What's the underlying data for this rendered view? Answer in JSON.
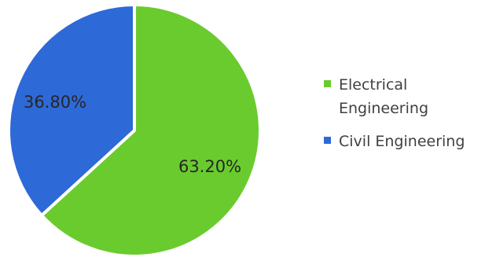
{
  "chart_data": {
    "type": "pie",
    "title": "",
    "slices": [
      {
        "name": "Electrical Engineering",
        "value": 63.2,
        "label": "63.20%",
        "color": "#6acb2e"
      },
      {
        "name": "Civil Engineering",
        "value": 36.8,
        "label": "36.80%",
        "color": "#2e69d8"
      }
    ],
    "start_angle": "12 o'clock",
    "direction": "clockwise",
    "legend": {
      "position": "right",
      "entries": [
        {
          "name": "Electrical Engineering",
          "line1": "Electrical",
          "line2": "Engineering",
          "color": "#6acb2e"
        },
        {
          "name": "Civil Engineering",
          "line1": "Civil Engineering",
          "color": "#2e69d8"
        }
      ]
    }
  }
}
